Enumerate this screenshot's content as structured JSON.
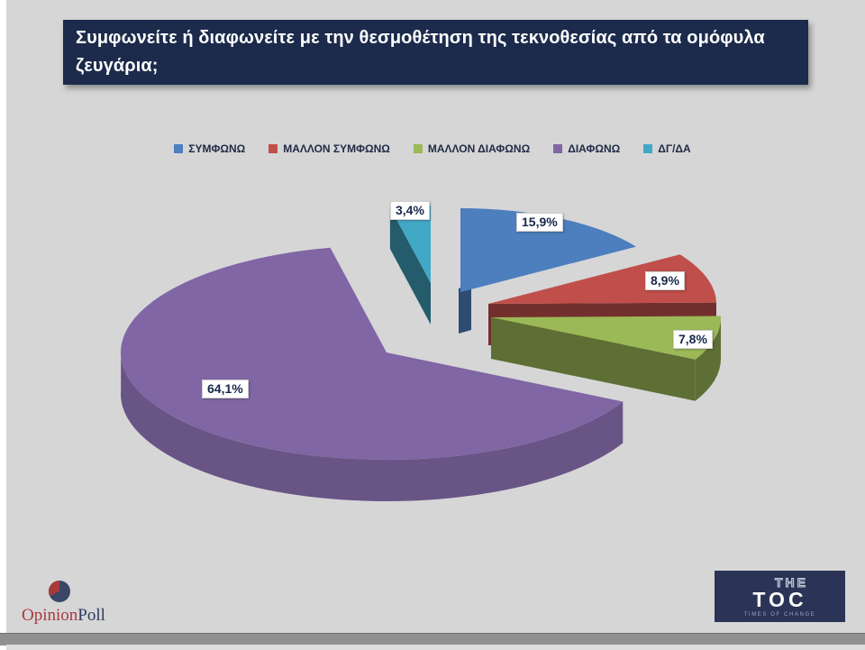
{
  "page": {
    "background": "#d6d6d7",
    "header_bg": "#1c2b4b",
    "question_lines": [
      "Συμφωνείτε ή διαφωνείτε με την θεσμοθέτηση της τεκνοθεσίας από τα ομόφυλα",
      "ζευγάρια;"
    ]
  },
  "chart_data": {
    "type": "pie",
    "style": "3d-exploded",
    "title": "Συμφωνείτε ή διαφωνείτε με την θεσμοθέτηση της τεκνοθεσίας από τα ομόφυλα ζευγάρια;",
    "legend_position": "top",
    "slices": [
      {
        "label": "ΣΥΜΦΩΝΩ",
        "value": 15.9,
        "display": "15,9%",
        "color": "#4d7ebd"
      },
      {
        "label": "ΜΑΛΛΟΝ ΣΥΜΦΩΝΩ",
        "value": 8.9,
        "display": "8,9%",
        "color": "#c04f4b"
      },
      {
        "label": "ΜΑΛΛΟΝ ΔΙΑΦΩΝΩ",
        "value": 7.8,
        "display": "7,8%",
        "color": "#9bb957"
      },
      {
        "label": "ΔΙΑΦΩΝΩ",
        "value": 64.1,
        "display": "64,1%",
        "color": "#8066a4"
      },
      {
        "label": "ΔΓ/ΔΑ",
        "value": 3.4,
        "display": "3,4%",
        "color": "#41a8c5"
      }
    ]
  },
  "footer": {
    "opinionpoll": {
      "opinion": "Opinion",
      "poll": "Poll"
    },
    "toc": {
      "the": "THE",
      "toc": "TOC",
      "tagline": "TIMES OF CHANGE"
    }
  }
}
